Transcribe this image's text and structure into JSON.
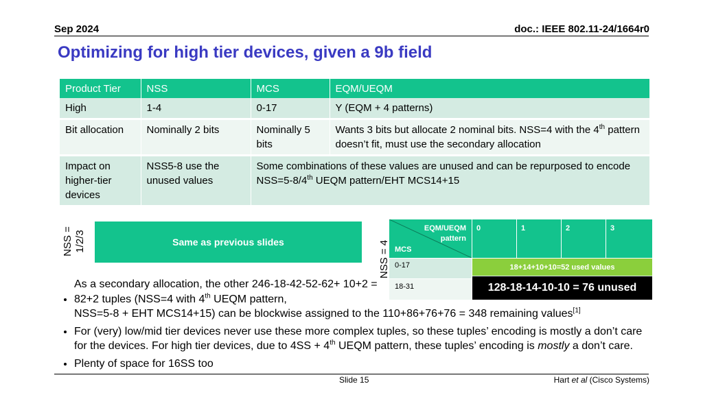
{
  "header": {
    "date": "Sep 2024",
    "doc": "doc.: IEEE 802.11-24/1664r0"
  },
  "title": "Optimizing for high tier devices, given a 9b field",
  "table": {
    "headers": [
      "Product Tier",
      "NSS",
      "MCS",
      "EQM/UEQM"
    ],
    "rows": [
      [
        "High",
        "1-4",
        "0-17",
        "Y (EQM + 4 patterns)"
      ],
      [
        "Bit allocation",
        "Nominally 2 bits",
        "Nominally 5 bits",
        "Wants 3 bits but allocate 2 nominal bits. NSS=4 with the 4",
        "th",
        " pattern doesn’t fit, must use the secondary allocation"
      ],
      [
        "Impact on higher-tier devices",
        "NSS5-8 use the unused values",
        "Some combinations of these values are unused and can be repurposed to encode NSS=5-8/4",
        "th",
        " UEQM pattern/EHT MCS14+15"
      ]
    ]
  },
  "left_panel": {
    "side_label": "NSS = 1/2/3",
    "box_text": "Same as previous slides"
  },
  "right_panel": {
    "side_label": "NSS = 4",
    "corner_top": "EQM/UEQM pattern",
    "corner_bottom": "MCS",
    "col_headers": [
      "0",
      "1",
      "2",
      "3"
    ],
    "row_labels": [
      "0-17",
      "18-31"
    ],
    "used_text": "18+14+10+10=52 used values",
    "unused_text": "128-18-14-10-10 = 76 unused"
  },
  "bullets": {
    "b1_a": "As a secondary allocation, the other 246-18-42-52-62+ 10+2 = 82+2 tuples (NSS=4 with 4",
    "b1_sup": "th",
    "b1_b": " UEQM pattern,",
    "b1_c": "NSS=5-8 + EHT MCS14+15) can be blockwise assigned to the 110+86+76+76 = 348 remaining values",
    "b1_ref": "[1]",
    "b2_a": "For (very) low/mid tier devices never use these more complex tuples, so these tuples’ encoding is mostly a don’t care for the devices. For high tier devices, due to 4SS + 4",
    "b2_sup": "th",
    "b2_b": " UEQM pattern, these tuples’ encoding is ",
    "b2_em": "mostly",
    "b2_c": " a don’t care.",
    "b3": "Plenty of space for 16SS too"
  },
  "footer": {
    "slide": "Slide 15",
    "author_a": "Hart ",
    "author_em": "et al",
    "author_b": " (Cisco Systems)"
  },
  "colors": {
    "accent": "#13c38d",
    "title": "#3a3ac2",
    "used": "#8bcf3c"
  }
}
